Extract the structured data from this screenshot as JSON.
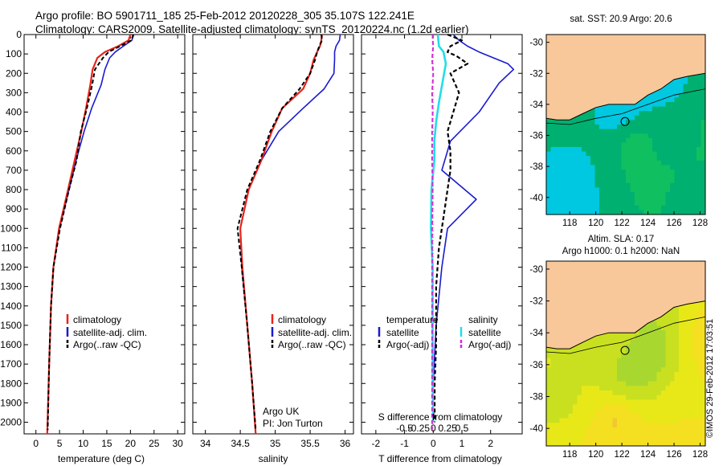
{
  "header": {
    "line1": "Argo profile: BO 5901711_185 25-Feb-2012 20120228_305 35.107S 122.241E",
    "line2": "Climatology: CARS2009. Satellite-adjusted climatology: synTS_20120224.nc (1.2d earlier)"
  },
  "stamp": "©IMOS 29-Feb-2012 17:03:51",
  "colors": {
    "climatology": "#e8231a",
    "satellite": "#1a1ad0",
    "argo": "#000000",
    "sat_salinity": "#22dde8",
    "argo_salinity": "#d22ad2",
    "land": "#f8c79a"
  },
  "chart_data": [
    {
      "type": "line",
      "name": "temperature",
      "xlabel": "temperature (deg C)",
      "xticks": [
        0,
        5,
        10,
        15,
        20,
        25,
        30
      ],
      "xlim": [
        -2.5,
        31.5
      ],
      "ylim": [
        0,
        2060
      ],
      "yticks": [
        0,
        100,
        200,
        300,
        400,
        500,
        600,
        700,
        800,
        900,
        1000,
        1100,
        1200,
        1300,
        1400,
        1500,
        1600,
        1700,
        1800,
        1900,
        2000
      ],
      "legend": [
        "climatology",
        "satellite-adj. clim.",
        "Argo(..raw -QC)"
      ],
      "series": [
        {
          "name": "climatology",
          "depth": [
            0,
            30,
            60,
            90,
            120,
            180,
            260,
            380,
            500,
            650,
            800,
            1000,
            1200,
            1400,
            1700,
            2060
          ],
          "values": [
            20.0,
            19.6,
            17.4,
            14.6,
            13.0,
            12.0,
            11.5,
            10.6,
            9.6,
            8.2,
            6.8,
            4.9,
            3.7,
            3.2,
            2.8,
            2.4
          ]
        },
        {
          "name": "satellite-adj. clim.",
          "depth": [
            0,
            30,
            60,
            90,
            120,
            180,
            260,
            380,
            500,
            650,
            800,
            1000,
            1200,
            1400,
            1700,
            2060
          ],
          "values": [
            20.7,
            20.3,
            18.5,
            16.8,
            15.6,
            14.6,
            13.8,
            11.8,
            10.2,
            8.5,
            7.0,
            5.0,
            3.7,
            3.2,
            2.8,
            2.4
          ]
        },
        {
          "name": "Argo(..raw -QC)",
          "depth": [
            0,
            30,
            60,
            90,
            120,
            180,
            260,
            380,
            500,
            650,
            800,
            1000,
            1200,
            1400,
            1700,
            2040
          ],
          "values": [
            20.6,
            20.2,
            17.8,
            15.4,
            14.2,
            12.5,
            11.9,
            10.8,
            9.5,
            8.6,
            7.0,
            5.1,
            3.7,
            3.2,
            2.8,
            2.5
          ]
        }
      ]
    },
    {
      "type": "line",
      "name": "salinity",
      "xlabel": "salinity",
      "xticks": [
        34,
        34.5,
        35,
        35.5,
        36
      ],
      "xlim": [
        33.82,
        36.12
      ],
      "ylim": [
        0,
        2060
      ],
      "legend": [
        "climatology",
        "satellite-adj. clim.",
        "Argo(..raw -QC)"
      ],
      "annotation": [
        "Argo UK",
        "PI: Jon Turton"
      ],
      "series": [
        {
          "name": "climatology",
          "depth": [
            0,
            30,
            60,
            90,
            130,
            200,
            280,
            380,
            500,
            650,
            800,
            1000,
            1200,
            1500,
            1800,
            2060
          ],
          "values": [
            35.67,
            35.66,
            35.64,
            35.6,
            35.55,
            35.5,
            35.4,
            35.1,
            34.95,
            34.8,
            34.62,
            34.5,
            34.53,
            34.6,
            34.67,
            34.72
          ]
        },
        {
          "name": "satellite-adj. clim.",
          "depth": [
            0,
            30,
            60,
            90,
            130,
            200,
            280,
            380,
            500,
            650,
            800,
            1000,
            1200,
            1500,
            1800,
            2060
          ],
          "values": [
            35.93,
            35.92,
            35.87,
            35.85,
            35.85,
            35.84,
            35.7,
            35.4,
            35.05,
            34.8,
            34.62,
            34.5,
            34.52,
            34.6,
            34.67,
            34.72
          ]
        },
        {
          "name": "Argo(..raw -QC)",
          "depth": [
            0,
            30,
            60,
            90,
            130,
            200,
            280,
            380,
            500,
            650,
            800,
            1000,
            1200,
            1500,
            1800,
            2040
          ],
          "values": [
            35.66,
            35.67,
            35.63,
            35.6,
            35.57,
            35.5,
            35.35,
            35.1,
            34.93,
            34.78,
            34.6,
            34.46,
            34.52,
            34.6,
            34.67,
            34.72
          ]
        }
      ]
    },
    {
      "type": "line",
      "name": "differences",
      "xlabel": "T difference from climatology",
      "xlabel_top": "S difference from climatology",
      "xticks_T": [
        -2,
        -1,
        0,
        1,
        2
      ],
      "xticks_S": [
        -0.5,
        -0.25,
        0,
        0.25,
        0.5
      ],
      "xticklabels_S": [
        "-0.5",
        "-0.25",
        "0",
        "0.25",
        "0.5"
      ],
      "xlim_T": [
        -2.5,
        3.1
      ],
      "legend_temperature_title": "temperature",
      "legend_salinity_title": "salinity",
      "legend": [
        "satellite",
        "Argo(-adj)",
        "satellite",
        "Argo(-adj)"
      ],
      "series": [
        {
          "name": "satellite",
          "quantity": "temperature",
          "depth": [
            0,
            30,
            60,
            90,
            150,
            180,
            250,
            400,
            550,
            700,
            850,
            1000,
            1200,
            1500,
            1800,
            2000
          ],
          "values": [
            0.7,
            0.9,
            1.2,
            1.6,
            2.6,
            2.8,
            2.3,
            1.6,
            0.6,
            0.3,
            1.5,
            0.5,
            0.3,
            0.1,
            0.0,
            0.0
          ]
        },
        {
          "name": "Argo(-adj)",
          "quantity": "temperature",
          "depth": [
            0,
            30,
            60,
            90,
            110,
            150,
            200,
            300,
            400,
            500,
            600,
            700,
            800,
            900,
            1000,
            1100,
            1300,
            1600,
            1800,
            2000
          ],
          "values": [
            0.5,
            1.0,
            0.6,
            0.5,
            0.8,
            1.2,
            0.6,
            0.9,
            0.7,
            0.5,
            0.6,
            0.6,
            0.5,
            0.4,
            0.3,
            0.2,
            0.1,
            0.1,
            0.05,
            0.05
          ]
        },
        {
          "name": "satellite",
          "quantity": "salinity",
          "depth": [
            0,
            30,
            60,
            90,
            150,
            250,
            350,
            450,
            550,
            650,
            800,
            1000,
            1200,
            1500,
            1800,
            2000
          ],
          "values": [
            0.08,
            0.09,
            0.1,
            0.18,
            0.22,
            0.16,
            0.1,
            0.05,
            0.02,
            0.02,
            -0.03,
            -0.04,
            -0.01,
            -0.01,
            -0.01,
            0.0
          ]
        },
        {
          "name": "Argo(-adj)",
          "quantity": "salinity",
          "depth": [
            0,
            30,
            60,
            90,
            130,
            200,
            300,
            400,
            500,
            650,
            800,
            1000,
            1200,
            1500,
            1800,
            2040
          ],
          "values": [
            -0.01,
            -0.01,
            0.0,
            -0.01,
            -0.02,
            0.0,
            -0.02,
            -0.01,
            -0.02,
            -0.02,
            -0.01,
            -0.02,
            -0.02,
            -0.02,
            -0.02,
            -0.02
          ]
        }
      ]
    },
    {
      "type": "heatmap",
      "name": "sst_map",
      "title": "sat. SST: 20.9  Argo: 20.6",
      "xticks": [
        118,
        120,
        122,
        124,
        126,
        128
      ],
      "yticks": [
        -30,
        -32,
        -34,
        -36,
        -38,
        -40
      ],
      "xlim": [
        116.2,
        128.4
      ],
      "ylim": [
        -41.1,
        -29.5
      ],
      "float_position": {
        "lon": 122.241,
        "lat": -35.107
      }
    },
    {
      "type": "heatmap",
      "name": "sla_map",
      "title": "Altim. SLA: 0.17",
      "subtitle": "Argo h1000: 0.1  h2000: NaN",
      "xticks": [
        118,
        120,
        122,
        124,
        126,
        128
      ],
      "yticks": [
        -30,
        -32,
        -34,
        -36,
        -38,
        -40
      ],
      "xlim": [
        116.2,
        128.4
      ],
      "ylim": [
        -41.1,
        -29.5
      ],
      "float_position": {
        "lon": 122.241,
        "lat": -35.107
      }
    }
  ]
}
